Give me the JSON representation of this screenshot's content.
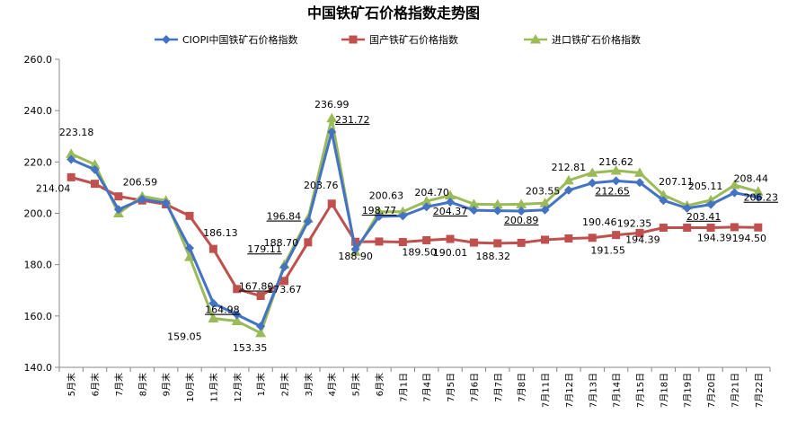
{
  "chart_data": {
    "type": "line",
    "title": "中国铁矿石价格指数走势图",
    "xlabel": "",
    "ylabel": "",
    "ylim": [
      140,
      260
    ],
    "yticks": [
      "140.0",
      "160.0",
      "180.0",
      "200.0",
      "220.0",
      "240.0",
      "260.0"
    ],
    "grid": false,
    "legend_position": "top",
    "categories": [
      "5月末",
      "6月末",
      "7月末",
      "8月末",
      "9月末",
      "10月末",
      "11月末",
      "12月末",
      "1月末",
      "2月末",
      "3月末",
      "4月末",
      "5月末",
      "6月末",
      "7月1日",
      "7月4日",
      "7月5日",
      "7月6日",
      "7月7日",
      "7月8日",
      "7月11日",
      "7月12日",
      "7月13日",
      "7月14日",
      "7月15日",
      "7月18日",
      "7月19日",
      "7月20日",
      "7月21日",
      "7月22日"
    ],
    "series": [
      {
        "name": "CIOPI中国铁矿石价格指数",
        "color": "#4472C4",
        "marker": "diamond",
        "values": [
          221.0,
          217.0,
          201.5,
          205.5,
          204.0,
          186.5,
          164.98,
          160.5,
          156.0,
          179.11,
          196.84,
          231.72,
          186.0,
          198.77,
          199.0,
          202.5,
          204.37,
          201.2,
          201.0,
          200.89,
          201.3,
          209.0,
          211.8,
          212.65,
          212.0,
          205.0,
          202.0,
          203.41,
          208.0,
          206.23
        ]
      },
      {
        "name": "国产铁矿石价格指数",
        "color": "#C0504D",
        "marker": "square",
        "values": [
          214.04,
          211.5,
          206.59,
          205.0,
          203.5,
          199.0,
          186.13,
          170.5,
          167.8,
          173.67,
          188.7,
          203.76,
          188.9,
          189.0,
          188.8,
          189.5,
          190.01,
          188.6,
          188.32,
          188.5,
          189.7,
          190.2,
          190.46,
          191.55,
          192.35,
          194.39,
          194.39,
          194.39,
          194.6,
          194.5
        ]
      },
      {
        "name": "进口铁矿石价格指数",
        "color": "#9BBB59",
        "marker": "triangle",
        "values": [
          223.18,
          219.0,
          200.0,
          206.59,
          205.0,
          183.0,
          159.05,
          158.0,
          153.35,
          180.0,
          198.0,
          236.99,
          185.0,
          200.63,
          200.6,
          204.7,
          207.0,
          203.6,
          203.4,
          203.55,
          204.0,
          212.81,
          215.8,
          216.62,
          215.8,
          207.11,
          203.0,
          205.11,
          211.0,
          208.44
        ]
      }
    ],
    "data_labels": [
      {
        "text": "223.18",
        "series": 2,
        "index": 0
      },
      {
        "text": "214.04",
        "series": 1,
        "index": 0
      },
      {
        "text": "206.59",
        "series": 1,
        "index": 2
      },
      {
        "text": "186.13",
        "series": 1,
        "index": 6
      },
      {
        "text": "164.98",
        "series": 0,
        "index": 6
      },
      {
        "text": "159.05",
        "series": 2,
        "index": 6
      },
      {
        "text": "167.80",
        "series": 1,
        "index": 8
      },
      {
        "text": "153.35",
        "series": 2,
        "index": 8
      },
      {
        "text": "179.11",
        "series": 0,
        "index": 9
      },
      {
        "text": "173.67",
        "series": 1,
        "index": 9
      },
      {
        "text": "196.84",
        "series": 0,
        "index": 10
      },
      {
        "text": "188.70",
        "series": 1,
        "index": 10
      },
      {
        "text": "236.99",
        "series": 2,
        "index": 11
      },
      {
        "text": "231.72",
        "series": 0,
        "index": 11
      },
      {
        "text": "203.76",
        "series": 1,
        "index": 11
      },
      {
        "text": "188.90",
        "series": 1,
        "index": 12
      },
      {
        "text": "200.63",
        "series": 2,
        "index": 13
      },
      {
        "text": "198.77",
        "series": 0,
        "index": 13
      },
      {
        "text": "204.70",
        "series": 2,
        "index": 15
      },
      {
        "text": "189.50",
        "series": 1,
        "index": 15
      },
      {
        "text": "204.37",
        "series": 0,
        "index": 16
      },
      {
        "text": "190.01",
        "series": 1,
        "index": 16
      },
      {
        "text": "188.32",
        "series": 1,
        "index": 18
      },
      {
        "text": "203.55",
        "series": 2,
        "index": 19
      },
      {
        "text": "200.89",
        "series": 0,
        "index": 19
      },
      {
        "text": "212.81",
        "series": 2,
        "index": 21
      },
      {
        "text": "190.46",
        "series": 1,
        "index": 22
      },
      {
        "text": "216.62",
        "series": 2,
        "index": 23
      },
      {
        "text": "212.65",
        "series": 0,
        "index": 23
      },
      {
        "text": "191.55",
        "series": 1,
        "index": 23
      },
      {
        "text": "192.35",
        "series": 1,
        "index": 24
      },
      {
        "text": "207.11",
        "series": 2,
        "index": 25
      },
      {
        "text": "194.39",
        "series": 1,
        "index": 25
      },
      {
        "text": "205.11",
        "series": 2,
        "index": 27
      },
      {
        "text": "203.41",
        "series": 0,
        "index": 27
      },
      {
        "text": "194.39",
        "series": 1,
        "index": 27
      },
      {
        "text": "208.44",
        "series": 2,
        "index": 29
      },
      {
        "text": "206.23",
        "series": 0,
        "index": 29
      },
      {
        "text": "194.50",
        "series": 1,
        "index": 29
      }
    ]
  }
}
